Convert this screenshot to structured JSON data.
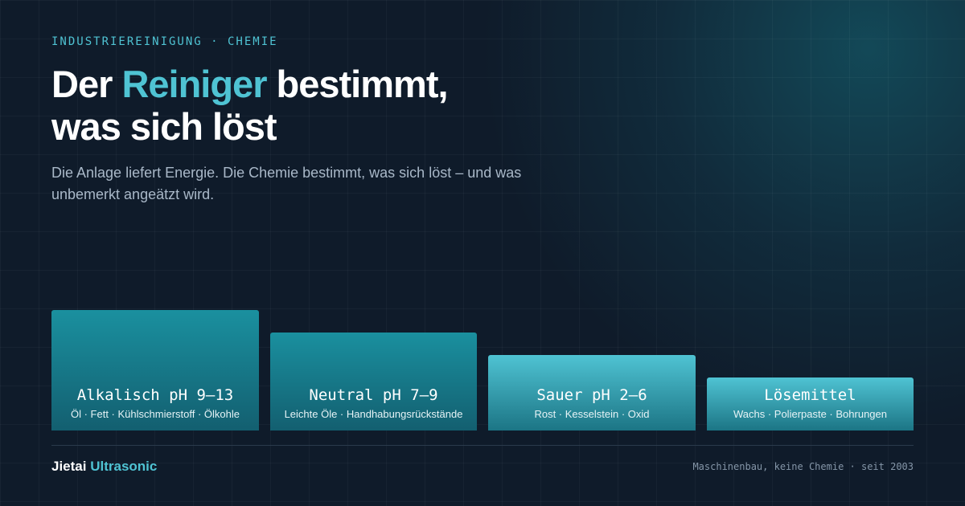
{
  "header": {
    "eyebrow": "INDUSTRIEREINIGUNG · CHEMIE",
    "title_start": "Der",
    "title_highlight": "Reiniger",
    "title_end": "bestimmt,",
    "title_line2": "was sich löst",
    "subtitle": "Die Anlage liefert Energie. Die Chemie bestimmt, was sich löst – und was unbemerkt angeätzt wird."
  },
  "cards": [
    {
      "title": "Alkalisch pH 9–13",
      "text": "Öl · Fett · Kühlschmierstoff · Ölkohle"
    },
    {
      "title": "Neutral pH 7–9",
      "text": "Leichte Öle · Handhabungsrückstände"
    },
    {
      "title": "Sauer pH 2–6",
      "text": "Rost · Kesselstein · Oxid"
    },
    {
      "title": "Lösemittel",
      "text": "Wachs · Polierpaste · Bohrungen"
    }
  ],
  "footer": {
    "brand": "Jietai",
    "brand_highlight": "Ultrasonic",
    "tagline": "Maschinenbau, keine Chemie · seit 2003"
  }
}
